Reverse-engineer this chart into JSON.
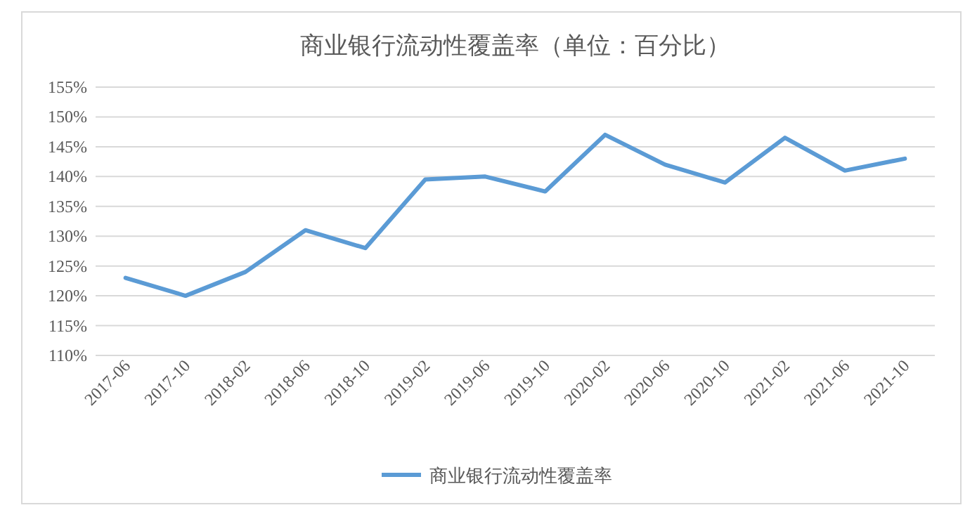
{
  "chart_data": {
    "type": "line",
    "title": "商业银行流动性覆盖率（单位：百分比）",
    "categories": [
      "2017-06",
      "2017-10",
      "2018-02",
      "2018-06",
      "2018-10",
      "2019-02",
      "2019-06",
      "2019-10",
      "2020-02",
      "2020-06",
      "2020-10",
      "2021-02",
      "2021-06",
      "2021-10"
    ],
    "series": [
      {
        "name": "商业银行流动性覆盖率",
        "color": "#5b9bd5",
        "values": [
          123,
          120,
          124,
          131,
          128,
          139.5,
          140,
          137.5,
          147,
          142,
          139,
          146.5,
          141,
          143
        ]
      }
    ],
    "ylim": [
      110,
      155
    ],
    "yticks": [
      {
        "value": 110,
        "label": "110%"
      },
      {
        "value": 115,
        "label": "115%"
      },
      {
        "value": 120,
        "label": "120%"
      },
      {
        "value": 125,
        "label": "125%"
      },
      {
        "value": 130,
        "label": "130%"
      },
      {
        "value": 135,
        "label": "135%"
      },
      {
        "value": 140,
        "label": "140%"
      },
      {
        "value": 145,
        "label": "145%"
      },
      {
        "value": 150,
        "label": "150%"
      },
      {
        "value": 155,
        "label": "155%"
      }
    ],
    "grid": "y",
    "legend": "bottom",
    "marker": "none",
    "line_style": "solid"
  }
}
